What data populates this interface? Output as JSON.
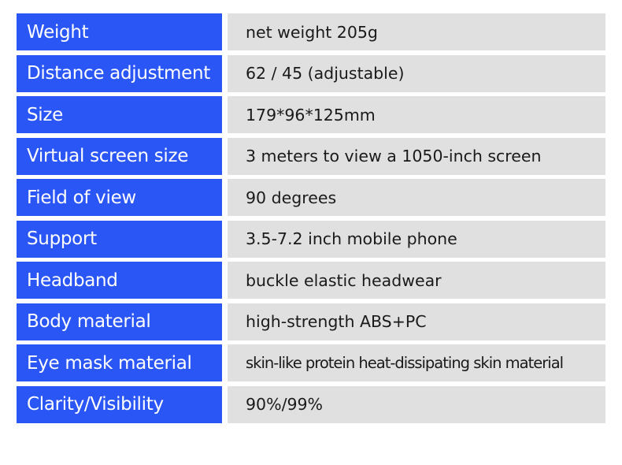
{
  "colors": {
    "label_bg": "#2a56f5",
    "value_bg": "#e0e0e0"
  },
  "specs": [
    {
      "label": "Weight",
      "value": "net weight 205g"
    },
    {
      "label": "Distance adjustment",
      "value": "62 / 45 (adjustable)"
    },
    {
      "label": "Size",
      "value": "179*96*125mm"
    },
    {
      "label": "Virtual screen size",
      "value": "3 meters to view a 1050-inch screen"
    },
    {
      "label": "Field of view",
      "value": "90 degrees"
    },
    {
      "label": "Support",
      "value": "3.5-7.2 inch mobile phone"
    },
    {
      "label": "Headband",
      "value": "buckle elastic headwear"
    },
    {
      "label": "Body material",
      "value": "high-strength ABS+PC"
    },
    {
      "label": "Eye mask material",
      "value": "skin-like protein heat-dissipating skin material"
    },
    {
      "label": "Clarity/Visibility",
      "value": "90%/99%"
    }
  ]
}
